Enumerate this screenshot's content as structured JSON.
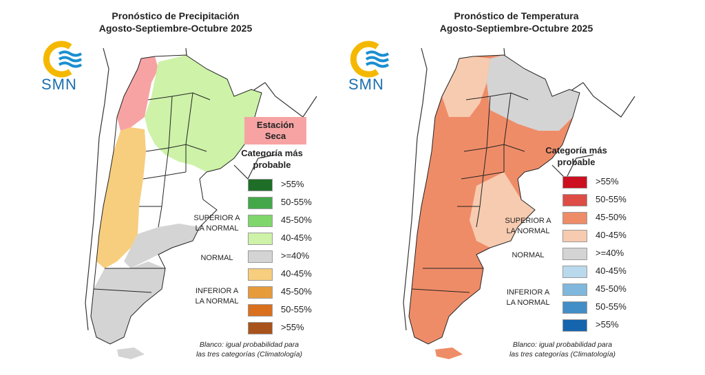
{
  "precip": {
    "title_line1": "Pronóstico de Precipitación",
    "title_line2": "Agosto-Septiembre-Octubre 2025",
    "logo_text": "SMN",
    "dry_season_line1": "Estación",
    "dry_season_line2": "Seca",
    "legend_title_line1": "Categoría más",
    "legend_title_line2": "probable",
    "legend": [
      {
        "label": ">55%",
        "color": "#1e6e28"
      },
      {
        "label": "50-55%",
        "color": "#44a84a"
      },
      {
        "label": "45-50%",
        "color": "#7fd66a"
      },
      {
        "label": "40-45%",
        "color": "#cdf2a8"
      },
      {
        "label": ">=40%",
        "color": "#d4d4d4"
      },
      {
        "label": "40-45%",
        "color": "#f7cd7e"
      },
      {
        "label": "45-50%",
        "color": "#e79b3b"
      },
      {
        "label": "50-55%",
        "color": "#d9701e"
      },
      {
        "label": ">55%",
        "color": "#a8531b"
      }
    ],
    "cat_superior_line1": "SUPERIOR A",
    "cat_superior_line2": "LA NORMAL",
    "cat_normal": "NORMAL",
    "cat_inferior_line1": "INFERIOR A",
    "cat_inferior_line2": "LA NORMAL",
    "note_line1": "Blanco: igual probabilidad para",
    "note_line2": "las tres categorías (Climatología)"
  },
  "temp": {
    "title_line1": "Pronóstico de Temperatura",
    "title_line2": "Agosto-Septiembre-Octubre 2025",
    "logo_text": "SMN",
    "legend_title_line1": "Categoría más",
    "legend_title_line2": "probable",
    "legend": [
      {
        "label": ">55%",
        "color": "#cc1020"
      },
      {
        "label": "50-55%",
        "color": "#de4c46"
      },
      {
        "label": "45-50%",
        "color": "#ef8c68"
      },
      {
        "label": "40-45%",
        "color": "#f7cbb0"
      },
      {
        "label": ">=40%",
        "color": "#d4d4d4"
      },
      {
        "label": "40-45%",
        "color": "#b9d9ec"
      },
      {
        "label": "45-50%",
        "color": "#80b7dc"
      },
      {
        "label": "50-55%",
        "color": "#428ec6"
      },
      {
        "label": ">55%",
        "color": "#1565ae"
      }
    ],
    "cat_superior_line1": "SUPERIOR A",
    "cat_superior_line2": "LA NORMAL",
    "cat_normal": "NORMAL",
    "cat_inferior_line1": "INFERIOR A",
    "cat_inferior_line2": "LA NORMAL",
    "note_line1": "Blanco: igual probabilidad para",
    "note_line2": "las tres categorías (Climatología)"
  },
  "colors": {
    "logo_yellow": "#f5b800",
    "logo_blue": "#1a8fd0",
    "smn_text": "#1a6fb0",
    "dry_season": "#f7a3a3",
    "map_outline": "#222222"
  }
}
